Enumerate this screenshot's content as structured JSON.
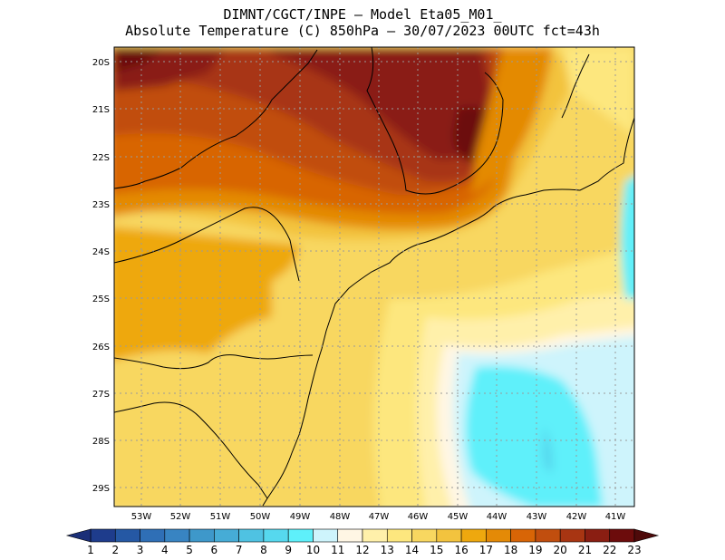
{
  "header": {
    "line1": "DIMNT/CGCT/INPE –  Model Eta05_M01_",
    "line2": "Absolute Temperature (C) 850hPa –  30/07/2023 00UTC fct=43h"
  },
  "map": {
    "lat_labels": [
      "20S",
      "21S",
      "22S",
      "23S",
      "24S",
      "25S",
      "26S",
      "27S",
      "28S",
      "29S"
    ],
    "lon_labels": [
      "53W",
      "52W",
      "51W",
      "50W",
      "49W",
      "48W",
      "47W",
      "46W",
      "45W",
      "44W",
      "43W",
      "42W",
      "41W"
    ]
  },
  "colorbar": {
    "labels": [
      "1",
      "2",
      "3",
      "4",
      "5",
      "6",
      "7",
      "8",
      "9",
      "10",
      "11",
      "12",
      "13",
      "14",
      "15",
      "16",
      "17",
      "18",
      "19",
      "20",
      "21",
      "22",
      "23"
    ],
    "colors": [
      "#1e3c8c",
      "#2558a4",
      "#2f6fb6",
      "#3884c2",
      "#3e98ca",
      "#46acd6",
      "#4fc2e2",
      "#56d8ee",
      "#5ef0fa",
      "#cef4fc",
      "#fff6e4",
      "#fff0aa",
      "#fde77e",
      "#f8d760",
      "#f3c33e",
      "#eea80e",
      "#e48a06",
      "#d86506",
      "#c14e0e",
      "#a83512",
      "#8a1e12",
      "#6c0c0c"
    ]
  }
}
